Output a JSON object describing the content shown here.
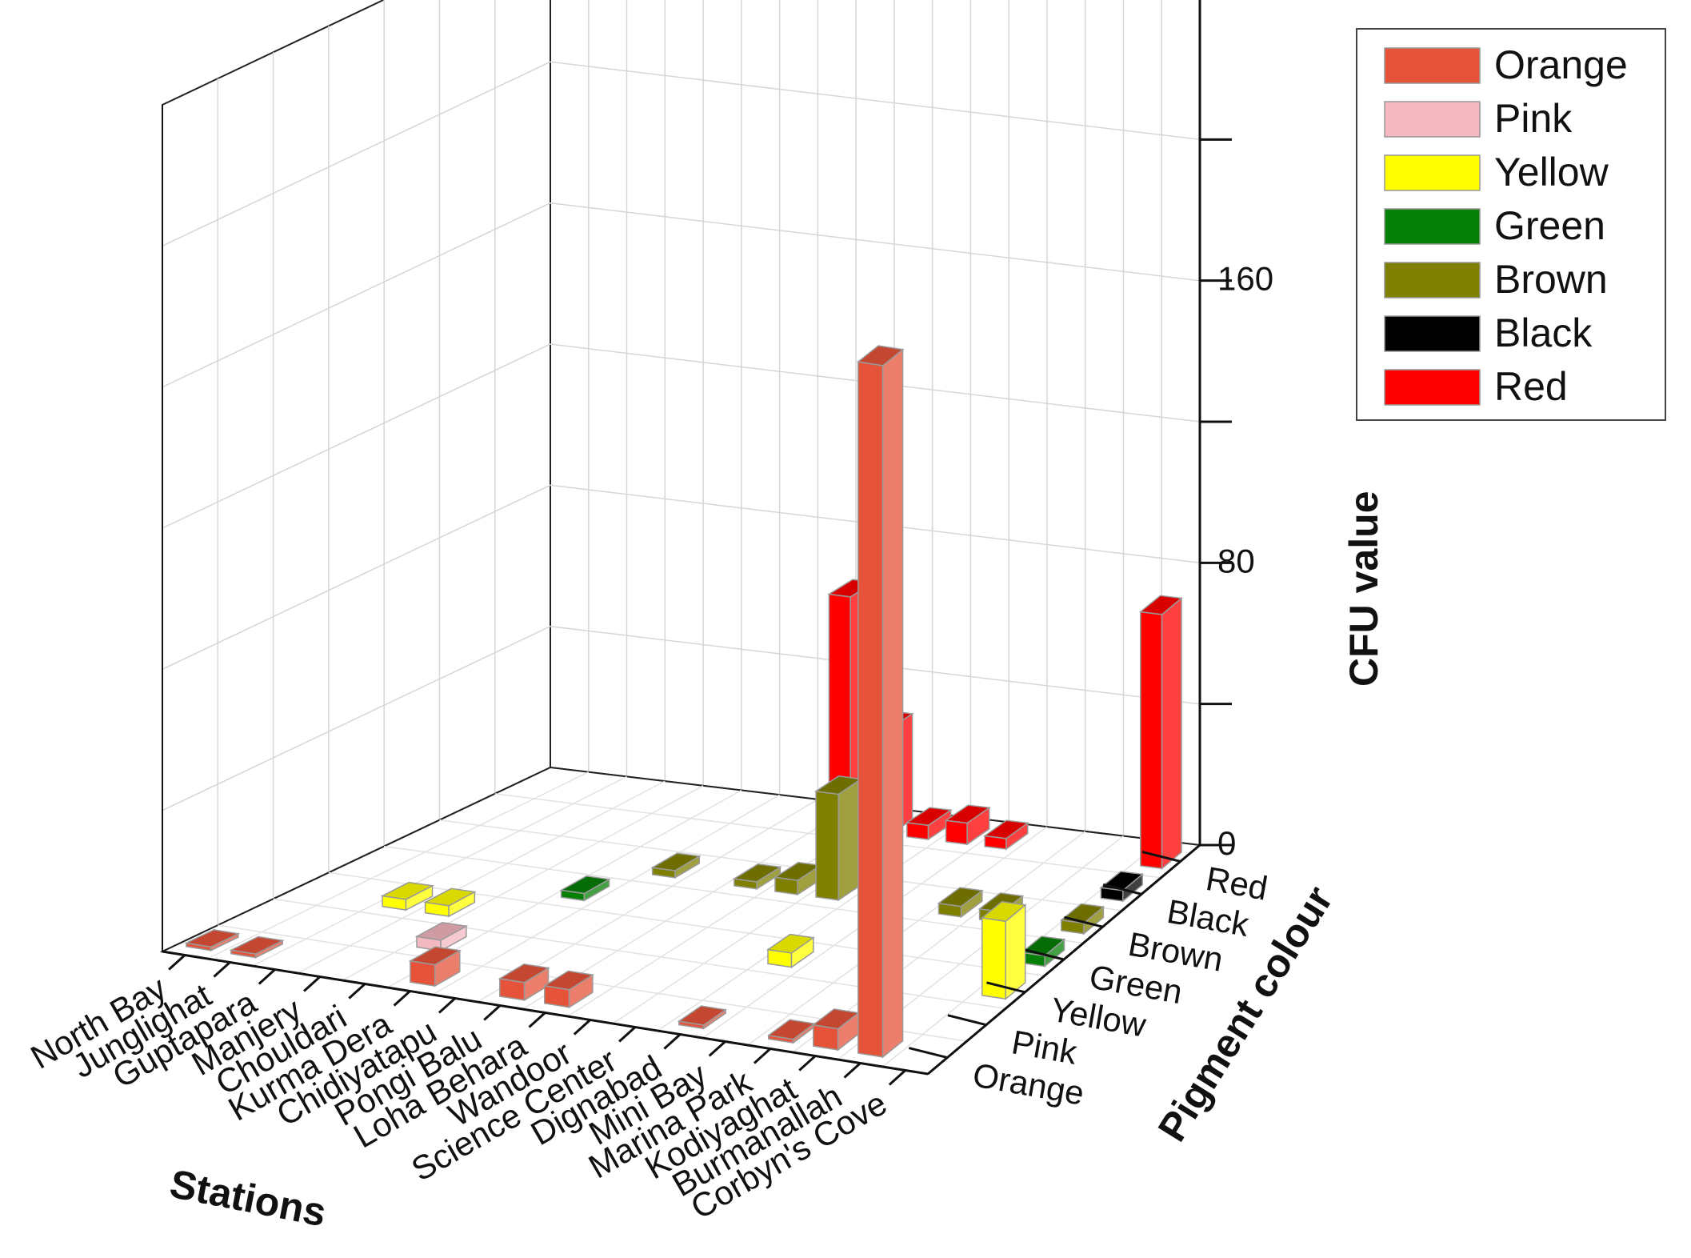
{
  "chart_data": {
    "type": "bar3d",
    "x_axis_label": "Stations",
    "y_axis_label": "Pigment colour",
    "z_axis_label": "CFU value",
    "stations": [
      "North Bay",
      "Junglighat",
      "Guptapara",
      "Manjery",
      "Chouldari",
      "Kurma Dera",
      "Chidiyatapu",
      "Pongi Balu",
      "Loha Behara",
      "Wandoor",
      "Science Center",
      "Dignabad",
      "Mini Bay",
      "Marina Park",
      "Kodiyaghat",
      "Burmanallah",
      "Corbyn's Cove"
    ],
    "pigments": [
      "Orange",
      "Pink",
      "Yellow",
      "Green",
      "Brown",
      "Black",
      "Red"
    ],
    "zlim": [
      0,
      240
    ],
    "z_ticks": [
      0,
      40,
      80,
      120,
      160,
      200
    ],
    "z_tick_labels": [
      "0",
      "",
      "80",
      "",
      "160",
      ""
    ],
    "series": [
      {
        "name": "Orange",
        "color": "#e5543a",
        "values": [
          1,
          1,
          0,
          0,
          0,
          6,
          0,
          5,
          5,
          0,
          0,
          1,
          0,
          1,
          6,
          196,
          0
        ]
      },
      {
        "name": "Pink",
        "color": "#f4b8c1",
        "values": [
          0,
          0,
          0,
          0,
          3,
          0,
          0,
          0,
          0,
          0,
          0,
          0,
          0,
          0,
          0,
          0,
          0
        ]
      },
      {
        "name": "Yellow",
        "color": "#ffff00",
        "values": [
          0,
          0,
          3,
          3,
          0,
          0,
          0,
          0,
          0,
          0,
          0,
          4,
          0,
          0,
          0,
          0,
          22
        ]
      },
      {
        "name": "Green",
        "color": "#078007",
        "values": [
          0,
          0,
          0,
          0,
          0,
          2,
          0,
          0,
          0,
          0,
          0,
          0,
          0,
          0,
          0,
          0,
          3
        ]
      },
      {
        "name": "Brown",
        "color": "#808000",
        "values": [
          0,
          0,
          0,
          0,
          0,
          0,
          2,
          0,
          2,
          4,
          30,
          0,
          0,
          3,
          3,
          0,
          3
        ]
      },
      {
        "name": "Black",
        "color": "#000000",
        "values": [
          0,
          0,
          0,
          0,
          0,
          0,
          0,
          0,
          0,
          3,
          0,
          0,
          0,
          0,
          0,
          0,
          3
        ]
      },
      {
        "name": "Red",
        "color": "#ff0000",
        "values": [
          0,
          0,
          0,
          0,
          0,
          0,
          0,
          0,
          66,
          30,
          4,
          6,
          3,
          0,
          0,
          0,
          72
        ]
      }
    ]
  },
  "legend": {
    "items": [
      {
        "label": "Orange",
        "color": "#e5543a"
      },
      {
        "label": "Pink",
        "color": "#f4b8c1"
      },
      {
        "label": "Yellow",
        "color": "#ffff00"
      },
      {
        "label": "Green",
        "color": "#078007"
      },
      {
        "label": "Brown",
        "color": "#808000"
      },
      {
        "label": "Black",
        "color": "#000000"
      },
      {
        "label": "Red",
        "color": "#ff0000"
      }
    ]
  }
}
